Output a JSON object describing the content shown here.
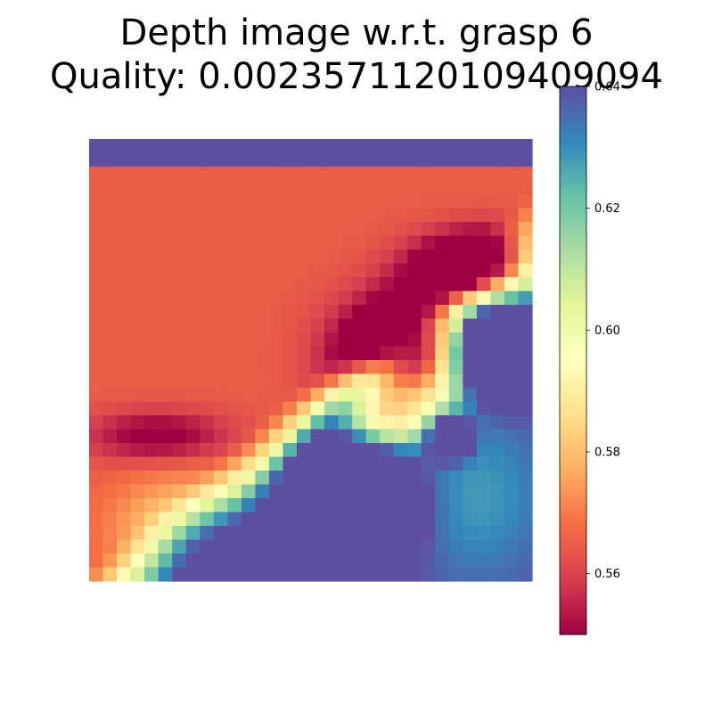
{
  "chart_data": {
    "type": "heatmap",
    "title_line1": "Depth image w.r.t. grasp 6",
    "title_line2": "Quality: 0.0023571120109409094",
    "colormap": "Spectral",
    "vmin": 0.55,
    "vmax": 0.64,
    "colorbar": {
      "ticks": [
        {
          "value": 0.56,
          "label": "0.56"
        },
        {
          "value": 0.58,
          "label": "0.58"
        },
        {
          "value": 0.6,
          "label": "0.60"
        },
        {
          "value": 0.62,
          "label": "0.62"
        },
        {
          "value": 0.64,
          "label": "0.64"
        }
      ]
    },
    "rows": 32,
    "cols": 32,
    "legend": "colorbar-right"
  }
}
